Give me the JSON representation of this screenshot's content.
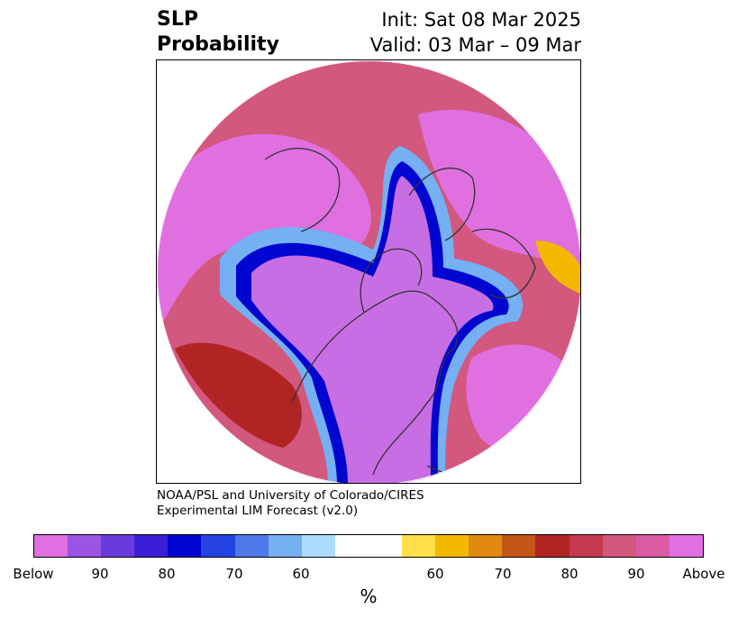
{
  "header": {
    "title_line1": "SLP",
    "title_line2": "Probability",
    "init": "Init: Sat 08 Mar 2025",
    "valid": "Valid: 03 Mar – 09 Mar"
  },
  "credit": {
    "line1": "NOAA/PSL and University of Colorado/CIRES",
    "line2": "Experimental LIM Forecast (v2.0)"
  },
  "colorbar": {
    "colors": [
      "#e070e0",
      "#9a55e4",
      "#6a3bdc",
      "#3a1fd6",
      "#0005d0",
      "#2443e0",
      "#4d7ae8",
      "#74b0f2",
      "#acdcfc",
      "#ffffff",
      "#ffffff",
      "#ffe04a",
      "#f4b800",
      "#e08810",
      "#c45418",
      "#b02424",
      "#c43a50",
      "#d2587e",
      "#da5aa4",
      "#e070e0"
    ],
    "labels": [
      "Below",
      "90",
      "80",
      "70",
      "60",
      "60",
      "70",
      "80",
      "90",
      "Above"
    ],
    "unit": "%"
  },
  "map": {
    "region": "Northern Hemisphere polar stereographic",
    "palette": {
      "above_strong": "#e070e0",
      "above_medium": "#d2587e",
      "above_low": "#b02424",
      "neutral_warm": "#f4b800",
      "below_strong": "#c86ee4",
      "below_medium": "#0005d0",
      "below_low": "#74b0f2",
      "coastline": "#333333"
    }
  }
}
